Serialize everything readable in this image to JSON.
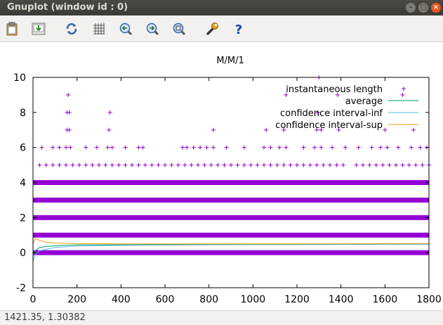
{
  "window": {
    "title": "Gnuplot (window id : 0)",
    "minimize_glyph": "–",
    "maximize_glyph": "□",
    "close_glyph": "×"
  },
  "toolbar": {
    "items": [
      {
        "icon": "clipboard-icon"
      },
      {
        "icon": "export-icon"
      },
      {
        "icon": "replot-icon"
      },
      {
        "icon": "grid-icon"
      },
      {
        "icon": "zoom-previous-icon"
      },
      {
        "icon": "zoom-next-icon"
      },
      {
        "icon": "autoscale-icon"
      },
      {
        "icon": "settings-wrench-icon"
      },
      {
        "icon": "help-icon"
      }
    ]
  },
  "chart_data": {
    "type": "scatter",
    "title": "M/M/1",
    "xlabel": "",
    "ylabel": "",
    "xlim": [
      0,
      1800
    ],
    "ylim": [
      -2,
      10
    ],
    "xticks": [
      "0",
      "200",
      "400",
      "600",
      "800",
      "1000",
      "1200",
      "1400",
      "1600",
      "1800"
    ],
    "yticks": [
      "-2",
      "0",
      "2",
      "4",
      "6",
      "8",
      "10"
    ],
    "grid": false,
    "legend_position": "top-right",
    "series": [
      {
        "name": "instantaneous length",
        "style": "points",
        "color": "#9400d3",
        "dense_levels": [
          0,
          1,
          2,
          3,
          4
        ],
        "level5_x": [
          30,
          60,
          90,
          120,
          150,
          180,
          210,
          240,
          270,
          300,
          330,
          360,
          390,
          420,
          450,
          480,
          510,
          540,
          570,
          600,
          630,
          660,
          690,
          720,
          750,
          780,
          810,
          840,
          870,
          900,
          930,
          960,
          990,
          1020,
          1050,
          1080,
          1110,
          1140,
          1170,
          1200,
          1230,
          1260,
          1290,
          1320,
          1350,
          1380,
          1410,
          1470,
          1500,
          1530,
          1560,
          1590,
          1620,
          1650,
          1680,
          1710,
          1740,
          1770,
          1800
        ],
        "sparse_points": [
          {
            "x": 160,
            "y": 9
          },
          {
            "x": 155,
            "y": 8
          },
          {
            "x": 165,
            "y": 8
          },
          {
            "x": 350,
            "y": 8
          },
          {
            "x": 1295,
            "y": 8
          },
          {
            "x": 155,
            "y": 7
          },
          {
            "x": 165,
            "y": 7
          },
          {
            "x": 345,
            "y": 7
          },
          {
            "x": 820,
            "y": 7
          },
          {
            "x": 1060,
            "y": 7
          },
          {
            "x": 1140,
            "y": 7
          },
          {
            "x": 1290,
            "y": 7
          },
          {
            "x": 1310,
            "y": 7
          },
          {
            "x": 1390,
            "y": 7
          },
          {
            "x": 1600,
            "y": 7
          },
          {
            "x": 1730,
            "y": 7
          },
          {
            "x": 1300,
            "y": 10
          },
          {
            "x": 1150,
            "y": 9
          },
          {
            "x": 1385,
            "y": 9
          },
          {
            "x": 1680,
            "y": 9
          },
          {
            "x": 40,
            "y": 6
          },
          {
            "x": 90,
            "y": 6
          },
          {
            "x": 120,
            "y": 6
          },
          {
            "x": 150,
            "y": 6
          },
          {
            "x": 170,
            "y": 6
          },
          {
            "x": 240,
            "y": 6
          },
          {
            "x": 290,
            "y": 6
          },
          {
            "x": 340,
            "y": 6
          },
          {
            "x": 360,
            "y": 6
          },
          {
            "x": 420,
            "y": 6
          },
          {
            "x": 480,
            "y": 6
          },
          {
            "x": 500,
            "y": 6
          },
          {
            "x": 680,
            "y": 6
          },
          {
            "x": 700,
            "y": 6
          },
          {
            "x": 730,
            "y": 6
          },
          {
            "x": 760,
            "y": 6
          },
          {
            "x": 790,
            "y": 6
          },
          {
            "x": 820,
            "y": 6
          },
          {
            "x": 880,
            "y": 6
          },
          {
            "x": 960,
            "y": 6
          },
          {
            "x": 1050,
            "y": 6
          },
          {
            "x": 1080,
            "y": 6
          },
          {
            "x": 1120,
            "y": 6
          },
          {
            "x": 1150,
            "y": 6
          },
          {
            "x": 1230,
            "y": 6
          },
          {
            "x": 1280,
            "y": 6
          },
          {
            "x": 1310,
            "y": 6
          },
          {
            "x": 1360,
            "y": 6
          },
          {
            "x": 1420,
            "y": 6
          },
          {
            "x": 1480,
            "y": 6
          },
          {
            "x": 1540,
            "y": 6
          },
          {
            "x": 1580,
            "y": 6
          },
          {
            "x": 1610,
            "y": 6
          },
          {
            "x": 1660,
            "y": 6
          },
          {
            "x": 1720,
            "y": 6
          },
          {
            "x": 1760,
            "y": 6
          },
          {
            "x": 1790,
            "y": 6
          }
        ]
      },
      {
        "name": "average",
        "style": "line",
        "color": "#009e73",
        "x": [
          0,
          10,
          30,
          60,
          100,
          200,
          400,
          800,
          1200,
          1800
        ],
        "y": [
          -0.2,
          0.1,
          0.3,
          0.35,
          0.4,
          0.45,
          0.45,
          0.47,
          0.48,
          0.5
        ]
      },
      {
        "name": "confidence interval-inf",
        "style": "line",
        "color": "#56b4e9",
        "x": [
          0,
          10,
          30,
          60,
          100,
          200,
          400,
          800,
          1200,
          1800
        ],
        "y": [
          -0.5,
          -0.1,
          0.1,
          0.2,
          0.3,
          0.38,
          0.42,
          0.45,
          0.46,
          0.48
        ]
      },
      {
        "name": "confidence interval-sup",
        "style": "line",
        "color": "#e69f00",
        "x": [
          0,
          10,
          30,
          60,
          100,
          200,
          400,
          800,
          1200,
          1800
        ],
        "y": [
          0.5,
          0.8,
          0.7,
          0.6,
          0.55,
          0.52,
          0.5,
          0.5,
          0.5,
          0.52
        ]
      }
    ]
  },
  "status": {
    "coords": "1421.35,  1.30382"
  }
}
